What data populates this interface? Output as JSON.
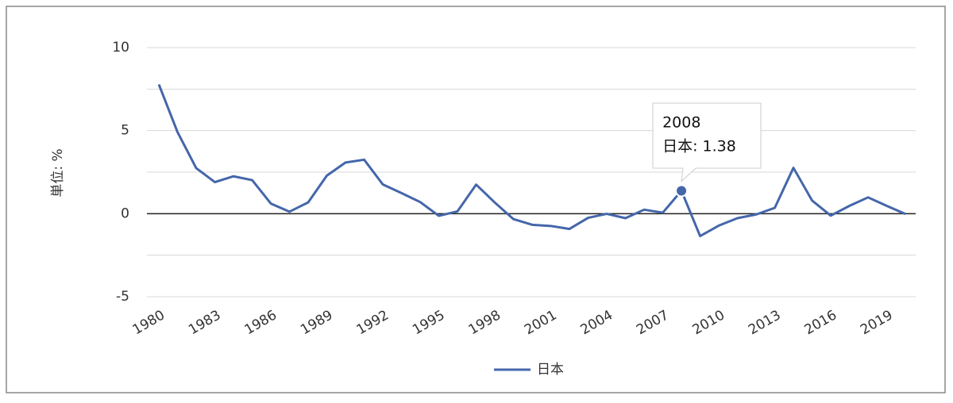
{
  "chart_data": {
    "type": "line",
    "y_label": "単位: %",
    "x": [
      1980,
      1981,
      1982,
      1983,
      1984,
      1985,
      1986,
      1987,
      1988,
      1989,
      1990,
      1991,
      1992,
      1993,
      1994,
      1995,
      1996,
      1997,
      1998,
      1999,
      2000,
      2001,
      2002,
      2003,
      2004,
      2005,
      2006,
      2007,
      2008,
      2009,
      2010,
      2011,
      2012,
      2013,
      2014,
      2015,
      2016,
      2017,
      2018,
      2019,
      2020
    ],
    "series": [
      {
        "name": "日本",
        "color": "#4466aa",
        "values": [
          7.78,
          4.91,
          2.74,
          1.9,
          2.25,
          2.02,
          0.61,
          0.12,
          0.68,
          2.29,
          3.08,
          3.25,
          1.76,
          1.24,
          0.7,
          -0.13,
          0.14,
          1.75,
          0.67,
          -0.33,
          -0.67,
          -0.74,
          -0.92,
          -0.25,
          -0.01,
          -0.27,
          0.24,
          0.06,
          1.38,
          -1.35,
          -0.72,
          -0.27,
          -0.05,
          0.35,
          2.76,
          0.79,
          -0.12,
          0.47,
          0.98,
          0.47,
          -0.02
        ]
      }
    ],
    "xlim": [
      1979.36,
      2020.55
    ],
    "xticks": [
      1980,
      1983,
      1986,
      1989,
      1992,
      1995,
      1998,
      2001,
      2004,
      2007,
      2010,
      2013,
      2016,
      2019
    ],
    "ylim": [
      -5,
      10
    ],
    "yticks": [
      -5,
      0,
      5,
      10
    ],
    "yminorticks": [
      -2.5,
      2.5,
      7.5
    ],
    "grid": true,
    "legend": "bottom",
    "tooltip": {
      "title": "2008",
      "label": "日本: 1.38"
    }
  }
}
